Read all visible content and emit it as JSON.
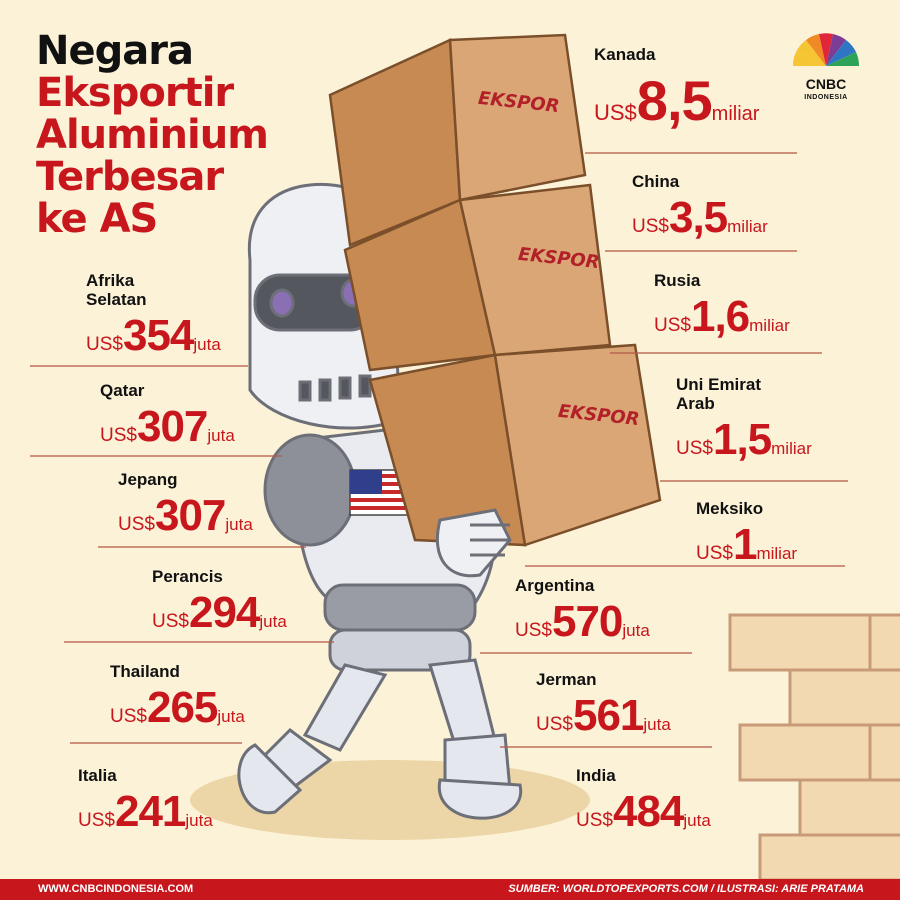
{
  "title": {
    "line1": "Negara",
    "line2": "Eksportir",
    "line3": "Aluminium",
    "line4": "Terbesar",
    "line5": "ke AS"
  },
  "logo": {
    "name": "CNBC",
    "sub": "INDONESIA"
  },
  "box_label": "EKSPOR",
  "currency": "US$",
  "countries": [
    {
      "name": "Kanada",
      "value": "8,5",
      "unit": "miliar"
    },
    {
      "name": "China",
      "value": "3,5",
      "unit": "miliar"
    },
    {
      "name": "Rusia",
      "value": "1,6",
      "unit": "miliar"
    },
    {
      "name": "Uni Emirat\nArab",
      "value": "1,5",
      "unit": "miliar"
    },
    {
      "name": "Meksiko",
      "value": "1",
      "unit": "miliar"
    },
    {
      "name": "Argentina",
      "value": "570",
      "unit": "juta"
    },
    {
      "name": "Jerman",
      "value": "561",
      "unit": "juta"
    },
    {
      "name": "India",
      "value": "484",
      "unit": "juta"
    },
    {
      "name": "Afrika\nSelatan",
      "value": "354",
      "unit": "juta"
    },
    {
      "name": "Qatar",
      "value": "307",
      "unit": "juta"
    },
    {
      "name": "Jepang",
      "value": "307",
      "unit": "juta"
    },
    {
      "name": "Perancis",
      "value": "294",
      "unit": "juta"
    },
    {
      "name": "Thailand",
      "value": "265",
      "unit": "juta"
    },
    {
      "name": "Italia",
      "value": "241",
      "unit": "juta"
    }
  ],
  "footer": {
    "left": "WWW.CNBCINDONESIA.COM",
    "right": "SUMBER:  WORLDTOPEXPORTS.COM / ILUSTRASI: ARIE PRATAMA"
  },
  "colors": {
    "accent": "#c8161d",
    "background": "#fbf2d8",
    "box": "#cf9a64"
  }
}
